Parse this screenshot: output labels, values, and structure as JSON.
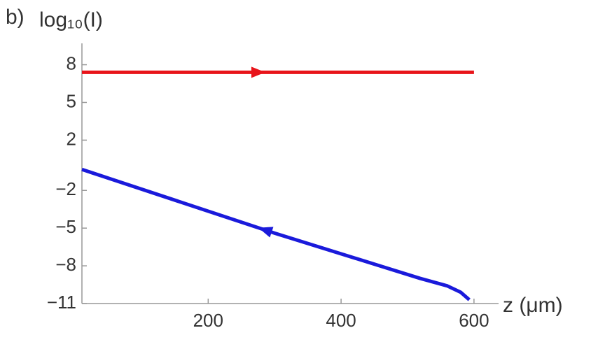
{
  "chart_data": {
    "type": "line",
    "panel_label": "b)",
    "y_label": "log₁₀(I)",
    "x_label": "z (μm)",
    "xlim": [
      10,
      637
    ],
    "ylim": [
      -11,
      9.7
    ],
    "xticks": [
      200,
      400,
      600
    ],
    "yticks": [
      8,
      5,
      2,
      {
        "value": -2,
        "label": "−2"
      },
      {
        "value": -5,
        "label": "−5"
      },
      {
        "value": -8,
        "label": "−8"
      },
      {
        "value": -11,
        "label": "−11"
      }
    ],
    "series": [
      {
        "x": [
          10,
          600
        ],
        "values": [
          7.4,
          7.4
        ],
        "color": "#e8141a",
        "direction": "forward"
      },
      {
        "x": [
          10,
          300,
          519,
          560,
          580,
          593
        ],
        "values": [
          -0.33,
          -5.4,
          -9.0,
          -9.6,
          -10.1,
          -10.7
        ],
        "color": "#1a1adb",
        "direction": "backward"
      }
    ]
  }
}
